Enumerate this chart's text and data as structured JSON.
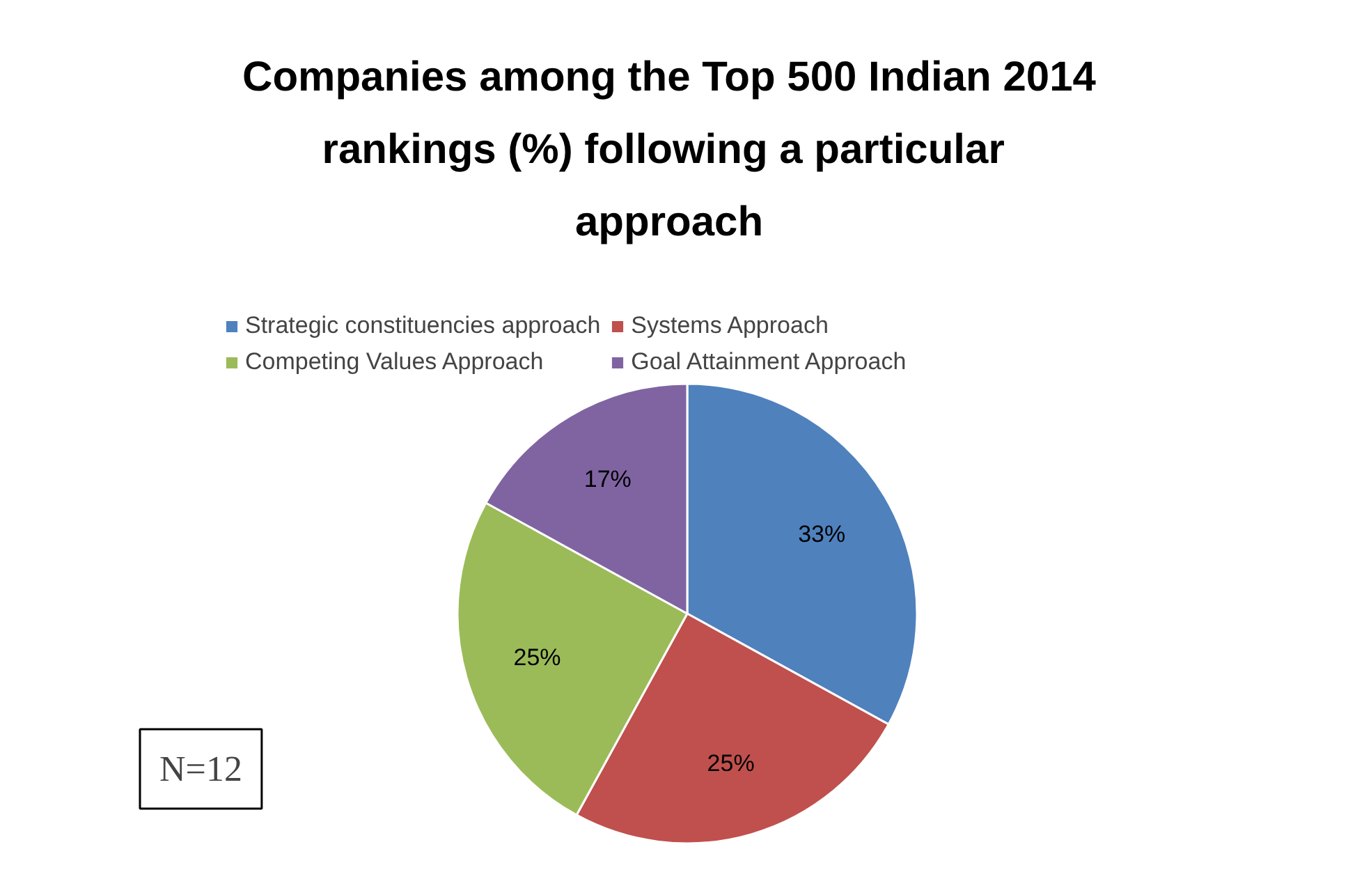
{
  "chart_data": {
    "type": "pie",
    "title": "Companies among the Top 500 Indian 2014 rankings  (%) following a particular approach",
    "categories": [
      "Strategic constituencies approach",
      "Systems Approach",
      "Competing Values Approach",
      "Goal Attainment Approach"
    ],
    "values": [
      33,
      25,
      25,
      17
    ],
    "colors": [
      "#4f81bd",
      "#c0504d",
      "#9bbb59",
      "#8064a2"
    ],
    "value_labels": [
      "33%",
      "25%",
      "25%",
      "17%"
    ],
    "legend": "top",
    "annotations": [
      "N=12"
    ]
  }
}
